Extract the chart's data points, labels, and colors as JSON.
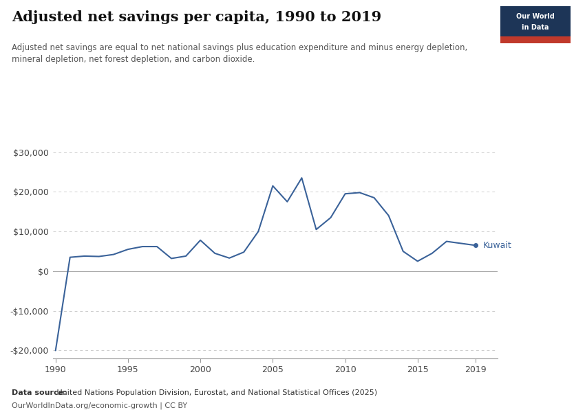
{
  "title": "Adjusted net savings per capita, 1990 to 2019",
  "subtitle": "Adjusted net savings are equal to net national savings plus education expenditure and minus energy depletion,\nmineral depletion, net forest depletion, and carbon dioxide.",
  "datasource_bold": "Data source:",
  "datasource_rest": " United Nations Population Division, Eurostat, and National Statistical Offices (2025)",
  "datasource_line2": "OurWorldInData.org/economic-growth | CC BY",
  "line_color": "#3a6299",
  "years": [
    1990,
    1991,
    1992,
    1993,
    1994,
    1995,
    1996,
    1997,
    1998,
    1999,
    2000,
    2001,
    2002,
    2003,
    2004,
    2005,
    2006,
    2007,
    2008,
    2009,
    2010,
    2011,
    2012,
    2013,
    2014,
    2015,
    2016,
    2017,
    2018,
    2019
  ],
  "values": [
    -20000,
    3500,
    3800,
    3700,
    4200,
    5500,
    6200,
    6200,
    3200,
    3800,
    7800,
    4500,
    3300,
    4800,
    10000,
    21500,
    17500,
    23500,
    10500,
    13500,
    19500,
    19800,
    18500,
    14000,
    5000,
    2500,
    4500,
    7500,
    7000,
    6500
  ],
  "ylim": [
    -22000,
    32000
  ],
  "yticks": [
    -20000,
    -10000,
    0,
    10000,
    20000,
    30000
  ],
  "xlabel_ticks": [
    1990,
    1995,
    2000,
    2005,
    2010,
    2015,
    2019
  ],
  "background_color": "#ffffff",
  "logo_bg_color": "#1d3557",
  "logo_red_color": "#c0392b",
  "label_kuwait": "Kuwait",
  "text_color": "#333333",
  "axis_color": "#999999",
  "grid_color": "#cccccc"
}
